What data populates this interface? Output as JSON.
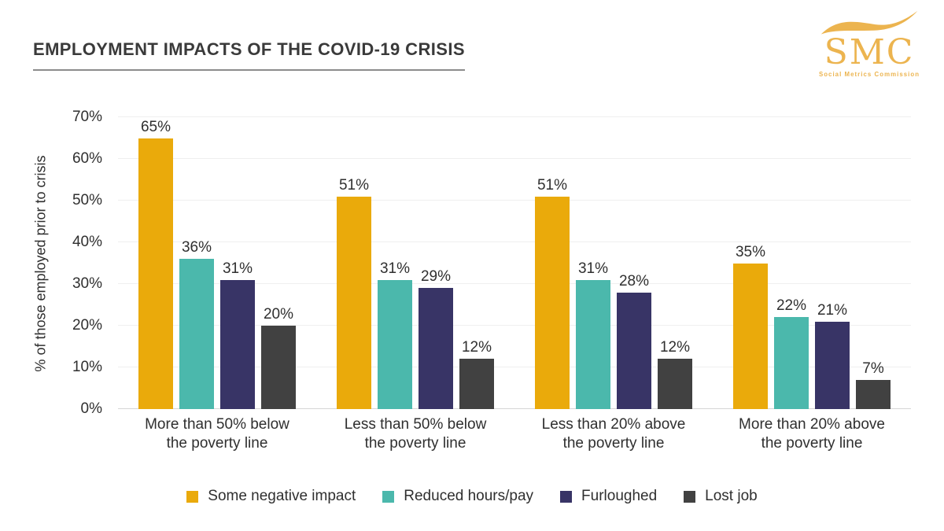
{
  "header": {
    "title": "EMPLOYMENT IMPACTS OF THE COVID-19 CRISIS",
    "logo": {
      "text": "SMC",
      "subtext": "Social Metrics Commission",
      "color": "#ECB44F"
    }
  },
  "chart_data": {
    "type": "bar",
    "title": "EMPLOYMENT IMPACTS OF THE COVID-19 CRISIS",
    "ylabel": "% of those employed prior to crisis",
    "ylim": [
      0,
      70
    ],
    "yticks": [
      0,
      10,
      20,
      30,
      40,
      50,
      60,
      70
    ],
    "ytick_suffix": "%",
    "grid": true,
    "legend_position": "bottom",
    "data_label_suffix": "%",
    "categories": [
      "More than 50% below\nthe poverty line",
      "Less than 50% below\nthe poverty line",
      "Less than 20% above\nthe poverty line",
      "More than 20% above\nthe poverty line"
    ],
    "series": [
      {
        "name": "Some negative impact",
        "color": "#EAAA0B",
        "values": [
          65,
          51,
          51,
          35
        ]
      },
      {
        "name": "Reduced hours/pay",
        "color": "#4BB8AC",
        "values": [
          36,
          31,
          31,
          22
        ]
      },
      {
        "name": "Furloughed",
        "color": "#383466",
        "values": [
          31,
          29,
          28,
          21
        ]
      },
      {
        "name": "Lost job",
        "color": "#414141",
        "values": [
          20,
          12,
          12,
          7
        ]
      }
    ]
  }
}
